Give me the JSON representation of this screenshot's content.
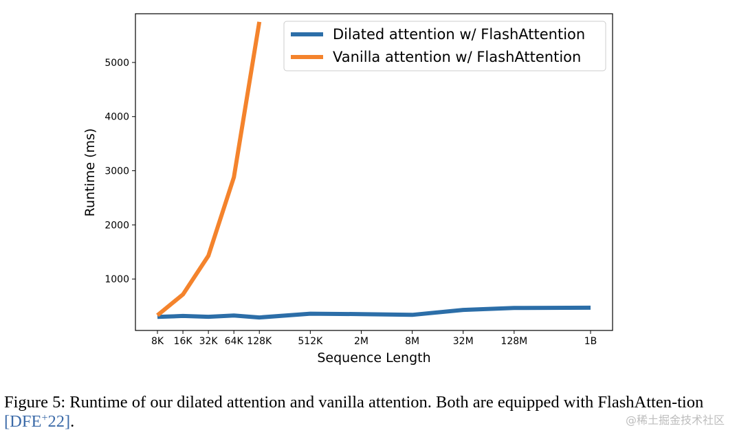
{
  "chart_data": {
    "type": "line",
    "categories": [
      "8K",
      "16K",
      "32K",
      "64K",
      "128K",
      "512K",
      "2M",
      "8M",
      "32M",
      "128M",
      "1B"
    ],
    "x": [
      8192,
      16384,
      32768,
      65536,
      131072,
      524288,
      2097152,
      8388608,
      33554432,
      134217728,
      1073741824
    ],
    "xscale": "log2",
    "xlabel": "Sequence Length",
    "ylabel": "Runtime (ms)",
    "ylim": [
      50,
      5900
    ],
    "yticks": [
      1000,
      2000,
      3000,
      4000,
      5000
    ],
    "grid": false,
    "legend_position": "top-right",
    "series": [
      {
        "name": "Dilated attention w/ FlashAttention",
        "color": "#2c6ea8",
        "values": [
          300,
          318,
          302,
          325,
          290,
          360,
          352,
          338,
          430,
          465,
          470
        ]
      },
      {
        "name": "Vanilla attention w/ FlashAttention",
        "color": "#f4832c",
        "values": [
          330,
          715,
          1430,
          2880,
          5750,
          null,
          null,
          null,
          null,
          null,
          null
        ]
      }
    ]
  },
  "caption": {
    "text": "Figure 5: Runtime of our dilated attention and vanilla attention. Both are equipped with FlashAtten-tion",
    "citation_base": "DFE",
    "citation_sup": "+",
    "citation_year": "22",
    "closing": "."
  },
  "watermark": "@稀土掘金技术社区"
}
